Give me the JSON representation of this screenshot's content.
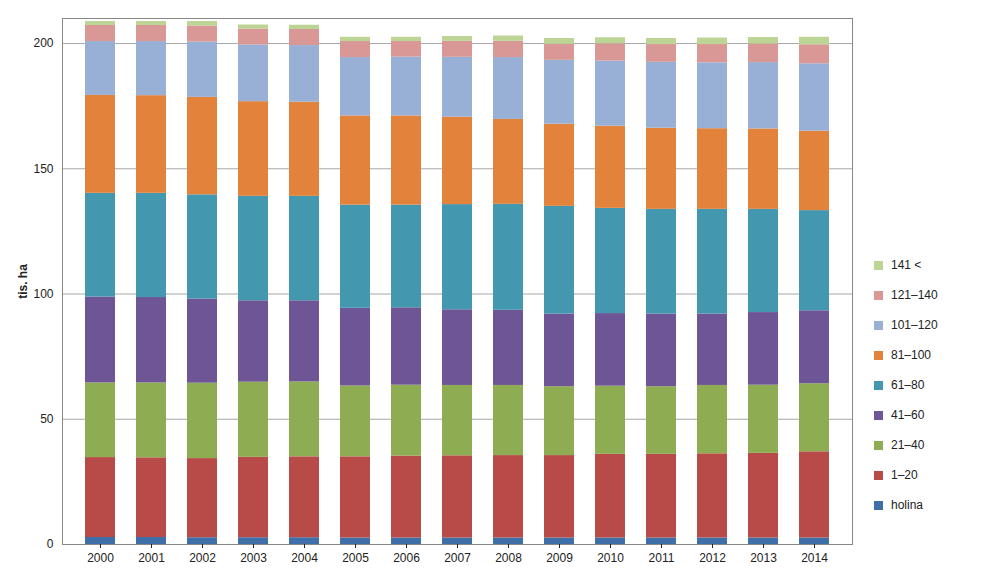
{
  "chart_data": {
    "type": "bar",
    "stacked": true,
    "grid": true,
    "legend": "right",
    "ylabel": "tis. ha",
    "categories": [
      "2000",
      "2001",
      "2002",
      "2003",
      "2004",
      "2005",
      "2006",
      "2007",
      "2008",
      "2009",
      "2010",
      "2011",
      "2012",
      "2013",
      "2014"
    ],
    "ylim": [
      0,
      210
    ],
    "yticks": [
      0,
      50,
      100,
      150,
      200
    ],
    "series": [
      {
        "name": "holina",
        "color": "#3f6fa8",
        "values": [
          2.8,
          2.8,
          2.7,
          2.7,
          2.7,
          2.6,
          2.6,
          2.6,
          2.6,
          2.6,
          2.6,
          2.6,
          2.6,
          2.6,
          2.6
        ]
      },
      {
        "name": "1–20",
        "color": "#b84a47",
        "values": [
          31.9,
          31.8,
          31.6,
          32.1,
          32.3,
          32.4,
          32.7,
          32.8,
          32.9,
          32.9,
          33.4,
          33.4,
          33.6,
          33.8,
          34.4
        ]
      },
      {
        "name": "21–40",
        "color": "#8eac52",
        "values": [
          29.8,
          29.9,
          30.1,
          30.0,
          29.9,
          28.3,
          28.3,
          28.1,
          28.0,
          27.5,
          27.2,
          27.0,
          27.3,
          27.2,
          27.2
        ]
      },
      {
        "name": "41–60",
        "color": "#6e5595",
        "values": [
          34.3,
          34.1,
          33.6,
          32.5,
          32.4,
          31.0,
          30.9,
          30.2,
          30.0,
          29.0,
          29.0,
          29.0,
          28.5,
          29.0,
          29.1
        ]
      },
      {
        "name": "61–80",
        "color": "#4398b0",
        "values": [
          41.4,
          41.6,
          41.6,
          41.7,
          41.7,
          41.2,
          41.0,
          42.0,
          42.3,
          43.0,
          42.0,
          41.8,
          41.8,
          41.2,
          40.0
        ]
      },
      {
        "name": "81–100",
        "color": "#e3833b",
        "values": [
          39.1,
          39.0,
          38.9,
          37.8,
          37.6,
          35.6,
          35.6,
          34.9,
          33.9,
          32.8,
          32.8,
          32.4,
          32.2,
          32.1,
          31.7
        ]
      },
      {
        "name": "101–120",
        "color": "#98b0d6",
        "values": [
          21.5,
          21.6,
          22.1,
          22.6,
          22.6,
          23.3,
          23.5,
          23.9,
          24.7,
          25.5,
          26.0,
          26.3,
          26.3,
          26.5,
          26.9
        ]
      },
      {
        "name": "121–140",
        "color": "#d99795",
        "values": [
          6.4,
          6.4,
          6.4,
          6.4,
          6.4,
          6.4,
          6.2,
          6.4,
          6.5,
          6.4,
          6.9,
          7.1,
          7.3,
          7.4,
          7.6
        ]
      },
      {
        "name": "141 <",
        "color": "#bcd494",
        "values": [
          1.6,
          1.6,
          1.8,
          1.6,
          1.7,
          1.7,
          1.7,
          1.9,
          2.1,
          2.3,
          2.4,
          2.4,
          2.6,
          2.6,
          3.0
        ]
      }
    ]
  }
}
